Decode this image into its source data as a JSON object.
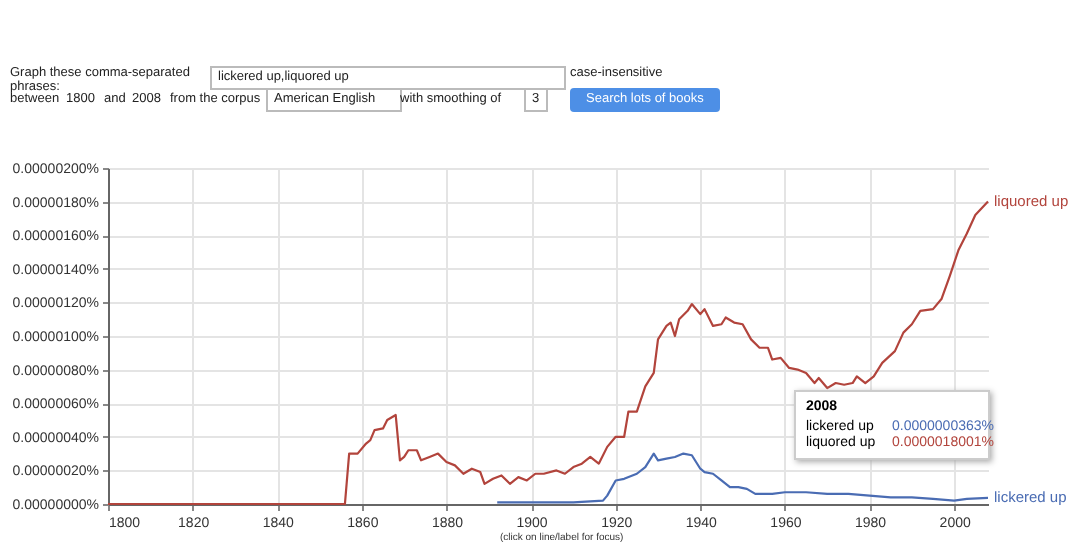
{
  "chart_data": {
    "type": "line",
    "annotations": [
      "Graph these comma-separated phrases:",
      "lickered up,liquored up",
      "case-insensitive",
      "between",
      "1800",
      "and",
      "2008",
      "from the corpus",
      "American English",
      "with smoothing of",
      "3",
      "Search lots of books",
      "(click on line/label for focus)",
      "2008",
      "lickered up",
      "0.0000000363%",
      "liquored up",
      "0.0000018001%"
    ],
    "xlim": [
      1800,
      2008
    ],
    "xticks": [
      1800,
      1820,
      1840,
      1860,
      1880,
      1900,
      1920,
      1940,
      1960,
      1980,
      2000
    ],
    "ylim": [
      0,
      2e-06
    ],
    "yticks": [
      {
        "value": 0,
        "label": "0.00000000%"
      },
      {
        "value": 2e-07,
        "label": "0.00000020%"
      },
      {
        "value": 4e-07,
        "label": "0.00000040%"
      },
      {
        "value": 6e-07,
        "label": "0.00000060%"
      },
      {
        "value": 8e-07,
        "label": "0.00000080%"
      },
      {
        "value": 1e-06,
        "label": "0.00000100%"
      },
      {
        "value": 1.2e-06,
        "label": "0.00000120%"
      },
      {
        "value": 1.4e-06,
        "label": "0.00000140%"
      },
      {
        "value": 1.6e-06,
        "label": "0.00000160%"
      },
      {
        "value": 1.8e-06,
        "label": "0.00000180%"
      },
      {
        "value": 2e-06,
        "label": "0.00000200%"
      }
    ],
    "grid": true,
    "legend": false,
    "marker": "none",
    "line_style": "solid",
    "series": [
      {
        "name": "liquored up",
        "color": "#b2443c",
        "x": [
          1800,
          1856,
          1857,
          1859,
          1861,
          1862,
          1863,
          1865,
          1866,
          1868,
          1869,
          1870,
          1871,
          1873,
          1874,
          1876,
          1878,
          1880,
          1882,
          1884,
          1886,
          1888,
          1889,
          1891,
          1893,
          1895,
          1897,
          1899,
          1901,
          1903,
          1906,
          1908,
          1910,
          1912,
          1914,
          1916,
          1918,
          1920,
          1922,
          1923,
          1925,
          1927,
          1929,
          1930,
          1932,
          1933,
          1934,
          1935,
          1937,
          1938,
          1940,
          1941,
          1943,
          1945,
          1946,
          1948,
          1950,
          1952,
          1954,
          1956,
          1957,
          1959,
          1961,
          1963,
          1965,
          1967,
          1968,
          1970,
          1972,
          1974,
          1976,
          1977,
          1979,
          1981,
          1983,
          1986,
          1988,
          1990,
          1992,
          1995,
          1997,
          1999,
          2001,
          2003,
          2005,
          2008
        ],
        "values": [
          0,
          0,
          3e-07,
          3e-07,
          3.6e-07,
          3.8e-07,
          4.4e-07,
          4.5e-07,
          5e-07,
          5.3e-07,
          2.6e-07,
          2.8e-07,
          3.2e-07,
          3.2e-07,
          2.6e-07,
          2.8e-07,
          3e-07,
          2.5e-07,
          2.3e-07,
          1.8e-07,
          2.1e-07,
          1.9e-07,
          1.2e-07,
          1.5e-07,
          1.7e-07,
          1.2e-07,
          1.6e-07,
          1.4e-07,
          1.8e-07,
          1.8e-07,
          2e-07,
          1.8e-07,
          2.2e-07,
          2.4e-07,
          2.8e-07,
          2.4e-07,
          3.4e-07,
          4e-07,
          4e-07,
          5.5e-07,
          5.5e-07,
          7e-07,
          7.8e-07,
          9.8e-07,
          1.06e-06,
          1.08e-06,
          1e-06,
          1.1e-06,
          1.15e-06,
          1.19e-06,
          1.13e-06,
          1.16e-06,
          1.06e-06,
          1.07e-06,
          1.11e-06,
          1.08e-06,
          1.07e-06,
          9.8e-07,
          9.3e-07,
          9.3e-07,
          8.6e-07,
          8.7e-07,
          8.1e-07,
          8e-07,
          7.8e-07,
          7.2e-07,
          7.5e-07,
          6.9e-07,
          7.2e-07,
          7.1e-07,
          7.2e-07,
          7.6e-07,
          7.2e-07,
          7.6e-07,
          8.4e-07,
          9.1e-07,
          1.02e-06,
          1.07e-06,
          1.15e-06,
          1.16e-06,
          1.22e-06,
          1.36e-06,
          1.51e-06,
          1.61e-06,
          1.72e-06,
          1.8e-06
        ]
      },
      {
        "name": "lickered up",
        "color": "#4a6cb3",
        "x": [
          1892,
          1900,
          1910,
          1917,
          1918,
          1920,
          1922,
          1925,
          1927,
          1929,
          1930,
          1932,
          1934,
          1936,
          1938,
          1940,
          1941,
          1943,
          1945,
          1947,
          1949,
          1951,
          1953,
          1957,
          1960,
          1965,
          1970,
          1975,
          1980,
          1985,
          1990,
          1995,
          2000,
          2003,
          2008
        ],
        "values": [
          1e-08,
          1e-08,
          1e-08,
          2e-08,
          5e-08,
          1.4e-07,
          1.5e-07,
          1.8e-07,
          2.2e-07,
          3e-07,
          2.6e-07,
          2.7e-07,
          2.8e-07,
          3e-07,
          2.9e-07,
          2.1e-07,
          1.9e-07,
          1.8e-07,
          1.4e-07,
          1e-07,
          1e-07,
          9e-08,
          6e-08,
          6e-08,
          7e-08,
          7e-08,
          6e-08,
          6e-08,
          5e-08,
          4e-08,
          4e-08,
          3e-08,
          2e-08,
          3e-08,
          3.63e-08
        ]
      }
    ]
  }
}
